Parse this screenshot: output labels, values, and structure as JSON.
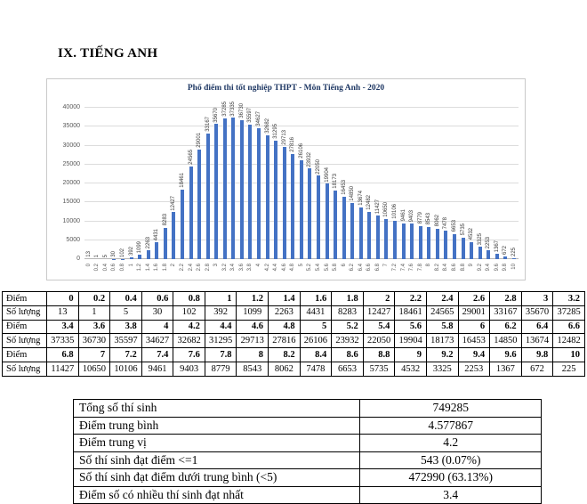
{
  "page": {
    "heading": "IX. TIẾNG ANH"
  },
  "colors": {
    "bar": "#4472c4",
    "chart_title": "#1f3864",
    "gridline": "#dcdcdc"
  },
  "chart_data": {
    "type": "bar",
    "title": "Phổ điểm thi tốt nghiệp THPT - Môn Tiếng Anh - 2020",
    "xlabel": "",
    "ylabel": "",
    "ylim": [
      0,
      40000
    ],
    "ytick_step": 5000,
    "grid": true,
    "legend": "none",
    "bar_color": "#4472c4",
    "categories": [
      "0",
      "0.2",
      "0.4",
      "0.6",
      "0.8",
      "1",
      "1.2",
      "1.4",
      "1.6",
      "1.8",
      "2",
      "2.2",
      "2.4",
      "2.6",
      "2.8",
      "3",
      "3.2",
      "3.4",
      "3.6",
      "3.8",
      "4",
      "4.2",
      "4.4",
      "4.6",
      "4.8",
      "5",
      "5.2",
      "5.4",
      "5.6",
      "5.8",
      "6",
      "6.2",
      "6.4",
      "6.6",
      "6.8",
      "7",
      "7.2",
      "7.4",
      "7.6",
      "7.8",
      "8",
      "8.2",
      "8.4",
      "8.6",
      "8.8",
      "9",
      "9.2",
      "9.4",
      "9.6",
      "9.8",
      "10"
    ],
    "values": [
      13,
      1,
      5,
      30,
      102,
      392,
      1099,
      2263,
      4431,
      8283,
      12427,
      18461,
      24565,
      29001,
      33167,
      35670,
      37285,
      37335,
      36730,
      35597,
      34627,
      32682,
      31295,
      29713,
      27816,
      26106,
      23932,
      22050,
      19904,
      18173,
      16453,
      14850,
      13674,
      12482,
      11427,
      10650,
      10106,
      9461,
      9403,
      8779,
      8543,
      8062,
      7478,
      6653,
      5735,
      4532,
      3325,
      2253,
      1367,
      672,
      225
    ]
  },
  "score_table": {
    "rows": [
      {
        "label": "Điểm",
        "type": "diem",
        "cells": [
          "0",
          "0.2",
          "0.4",
          "0.6",
          "0.8",
          "1",
          "1.2",
          "1.4",
          "1.6",
          "1.8",
          "2",
          "2.2",
          "2.4",
          "2.6",
          "2.8",
          "3",
          "3.2"
        ]
      },
      {
        "label": "Số lượng",
        "type": "soluong",
        "cells": [
          "13",
          "1",
          "5",
          "30",
          "102",
          "392",
          "1099",
          "2263",
          "4431",
          "8283",
          "12427",
          "18461",
          "24565",
          "29001",
          "33167",
          "35670",
          "37285"
        ]
      },
      {
        "label": "Điểm",
        "type": "diem",
        "cells": [
          "3.4",
          "3.6",
          "3.8",
          "4",
          "4.2",
          "4.4",
          "4.6",
          "4.8",
          "5",
          "5.2",
          "5.4",
          "5.6",
          "5.8",
          "6",
          "6.2",
          "6.4",
          "6.6"
        ]
      },
      {
        "label": "Số lượng",
        "type": "soluong",
        "cells": [
          "37335",
          "36730",
          "35597",
          "34627",
          "32682",
          "31295",
          "29713",
          "27816",
          "26106",
          "23932",
          "22050",
          "19904",
          "18173",
          "16453",
          "14850",
          "13674",
          "12482"
        ]
      },
      {
        "label": "Điểm",
        "type": "diem",
        "cells": [
          "6.8",
          "7",
          "7.2",
          "7.4",
          "7.6",
          "7.8",
          "8",
          "8.2",
          "8.4",
          "8.6",
          "8.8",
          "9",
          "9.2",
          "9.4",
          "9.6",
          "9.8",
          "10"
        ]
      },
      {
        "label": "Số lượng",
        "type": "soluong",
        "cells": [
          "11427",
          "10650",
          "10106",
          "9461",
          "9403",
          "8779",
          "8543",
          "8062",
          "7478",
          "6653",
          "5735",
          "4532",
          "3325",
          "2253",
          "1367",
          "672",
          "225"
        ]
      }
    ]
  },
  "summary_table": {
    "rows": [
      {
        "label": "Tổng số thí sinh",
        "value": "749285"
      },
      {
        "label": "Điểm trung bình",
        "value": "4.577867"
      },
      {
        "label": "Điểm trung vị",
        "value": "4.2"
      },
      {
        "label": "Số thí sinh đạt điểm <=1",
        "value": "543 (0.07%)"
      },
      {
        "label": "Số thí sinh đạt điểm dưới trung bình (<5)",
        "value": "472990 (63.13%)"
      },
      {
        "label": "Điểm số có nhiều thí sinh đạt nhất",
        "value": "3.4"
      }
    ]
  }
}
